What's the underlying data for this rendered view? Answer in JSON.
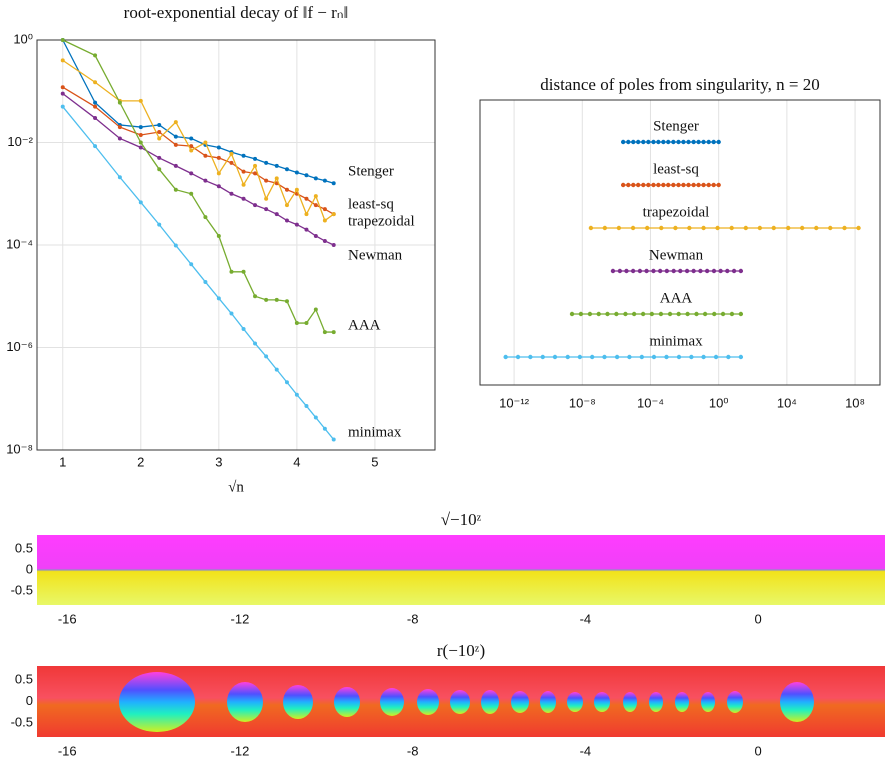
{
  "chart_data": [
    {
      "type": "line",
      "title": "root-exponential decay of ‖f − rₙ‖",
      "xlabel": "√n",
      "yscale": "log",
      "grid": true,
      "xlim": [
        0.67,
        5.77
      ],
      "xticks": [
        1,
        2,
        3,
        4,
        5
      ],
      "ylim": [
        1e-08,
        1
      ],
      "yticks": [
        {
          "value": 1,
          "label": "10⁰"
        },
        {
          "value": 0.01,
          "label": "10⁻²"
        },
        {
          "value": 0.0001,
          "label": "10⁻⁴"
        },
        {
          "value": 1e-06,
          "label": "10⁻⁶"
        },
        {
          "value": 1e-08,
          "label": "10⁻⁸"
        }
      ],
      "x": [
        1,
        1.414,
        1.732,
        2,
        2.236,
        2.449,
        2.646,
        2.828,
        3,
        3.162,
        3.317,
        3.464,
        3.606,
        3.742,
        3.873,
        4,
        4.123,
        4.243,
        4.359,
        4.472
      ],
      "series": [
        {
          "name": "Stenger",
          "color": "#0072bd",
          "values": [
            1,
            0.06,
            0.022,
            0.02,
            0.022,
            0.013,
            0.012,
            0.009,
            0.008,
            0.0065,
            0.0055,
            0.0048,
            0.004,
            0.0035,
            0.003,
            0.0026,
            0.0023,
            0.002,
            0.0018,
            0.0016
          ]
        },
        {
          "name": "least-sq",
          "color": "#d95319",
          "values": [
            0.12,
            0.05,
            0.02,
            0.014,
            0.016,
            0.009,
            0.0085,
            0.0055,
            0.005,
            0.004,
            0.0027,
            0.0025,
            0.0018,
            0.0016,
            0.0012,
            0.001,
            0.0008,
            0.0006,
            0.0005,
            0.0004
          ]
        },
        {
          "name": "trapezoidal",
          "color": "#edb120",
          "values": [
            0.4,
            0.15,
            0.065,
            0.065,
            0.012,
            0.025,
            0.007,
            0.01,
            0.0025,
            0.006,
            0.0015,
            0.0035,
            0.0008,
            0.002,
            0.0006,
            0.0012,
            0.0004,
            0.0009,
            0.0003,
            0.0004
          ]
        },
        {
          "name": "Newman",
          "color": "#7e2f8e",
          "values": [
            0.09,
            0.03,
            0.012,
            0.008,
            0.005,
            0.0035,
            0.0025,
            0.0018,
            0.0014,
            0.001,
            0.0008,
            0.0006,
            0.0005,
            0.0004,
            0.0003,
            0.00025,
            0.0002,
            0.00015,
            0.00012,
            0.0001
          ]
        },
        {
          "name": "AAA",
          "color": "#77ac30",
          "values": [
            1,
            0.5,
            0.06,
            0.01,
            0.003,
            0.0012,
            0.001,
            0.00035,
            0.00015,
            3e-05,
            3e-05,
            1e-05,
            8.5e-06,
            8.5e-06,
            8e-06,
            3e-06,
            3e-06,
            5.5e-06,
            2e-06,
            2e-06
          ]
        },
        {
          "name": "minimax",
          "color": "#4dbeee",
          "values": [
            0.05,
            0.0085,
            0.0021,
            0.00068,
            0.00025,
            9.8e-05,
            4.2e-05,
            1.9e-05,
            9.1e-06,
            4.6e-06,
            2.3e-06,
            1.2e-06,
            6.7e-07,
            3.7e-07,
            2.1e-07,
            1.2e-07,
            7.2e-08,
            4.3e-08,
            2.6e-08,
            1.6e-08
          ]
        }
      ]
    },
    {
      "type": "strip",
      "title": "distance of poles from singularity, n = 20",
      "xscale": "log",
      "grid": true,
      "xlim": [
        1e-14,
        2900000000.0
      ],
      "xticks": [
        {
          "value": 1e-12,
          "label": "10⁻¹²"
        },
        {
          "value": 1e-08,
          "label": "10⁻⁸"
        },
        {
          "value": 0.0001,
          "label": "10⁻⁴"
        },
        {
          "value": 1,
          "label": "10⁰"
        },
        {
          "value": 10000,
          "label": "10⁴"
        },
        {
          "value": 100000000,
          "label": "10⁸"
        }
      ],
      "series": [
        {
          "name": "Stenger",
          "color": "#0072bd",
          "values": [
            2.5e-06,
            5e-06,
            9.8e-06,
            1.9e-05,
            3.8e-05,
            7.5e-05,
            0.00015,
            0.00029,
            0.00057,
            0.0011,
            0.0022,
            0.0044,
            0.0086,
            0.017,
            0.034,
            0.066,
            0.13,
            0.26,
            0.51,
            1
          ]
        },
        {
          "name": "least-sq",
          "color": "#d95319",
          "values": [
            2.5e-06,
            5e-06,
            9.8e-06,
            1.9e-05,
            3.8e-05,
            7.5e-05,
            0.00015,
            0.00029,
            0.00057,
            0.0011,
            0.0022,
            0.0044,
            0.0086,
            0.017,
            0.034,
            0.066,
            0.13,
            0.26,
            0.51,
            1
          ]
        },
        {
          "name": "trapezoidal",
          "color": "#edb120",
          "values": [
            3.2e-08,
            2.1e-07,
            1.4e-06,
            9.5e-06,
            6.4e-05,
            0.00043,
            0.0029,
            0.019,
            0.13,
            0.86,
            5.8,
            39,
            260,
            1700,
            12000,
            79000,
            530000,
            3500000,
            24000000,
            160000000
          ]
        },
        {
          "name": "Newman",
          "color": "#7e2f8e",
          "values": [
            6.3e-07,
            1.6e-06,
            3.9e-06,
            9.6e-06,
            2.4e-05,
            5.9e-05,
            0.00015,
            0.00037,
            0.00091,
            0.0023,
            0.0056,
            0.014,
            0.034,
            0.085,
            0.21,
            0.53,
            1.3,
            3.2,
            8,
            20
          ]
        },
        {
          "name": "AAA",
          "color": "#77ac30",
          "values": [
            2.5e-09,
            8.3e-09,
            2.8e-08,
            9.2e-08,
            3e-07,
            1e-06,
            3.4e-06,
            1.1e-05,
            3.7e-05,
            0.00012,
            0.00041,
            0.0014,
            0.0045,
            0.015,
            0.05,
            0.16,
            0.55,
            1.8,
            6,
            20
          ]
        },
        {
          "name": "minimax",
          "color": "#4dbeee",
          "values": [
            3.2e-13,
            1.7e-12,
            9e-12,
            4.8e-11,
            2.5e-10,
            1.4e-09,
            7.2e-09,
            3.8e-08,
            2e-07,
            1.1e-06,
            5.8e-06,
            3.1e-05,
            0.00016,
            0.00087,
            0.0047,
            0.025,
            0.13,
            0.7,
            3.7,
            20
          ]
        }
      ]
    },
    {
      "type": "image",
      "title": "√−10ᶻ",
      "xlim": [
        -16.7,
        2.94
      ],
      "ylim": [
        -0.83,
        0.83
      ],
      "xticks": [
        -16,
        -12,
        -8,
        -4,
        0
      ],
      "yticks": [
        0.5,
        0,
        -0.5
      ]
    },
    {
      "type": "image",
      "title": "r(−10ᶻ)",
      "xlim": [
        -16.7,
        2.94
      ],
      "ylim": [
        -0.83,
        0.83
      ],
      "xticks": [
        -16,
        -12,
        -8,
        -4,
        0
      ],
      "yticks": [
        0.5,
        0,
        -0.5
      ]
    }
  ]
}
